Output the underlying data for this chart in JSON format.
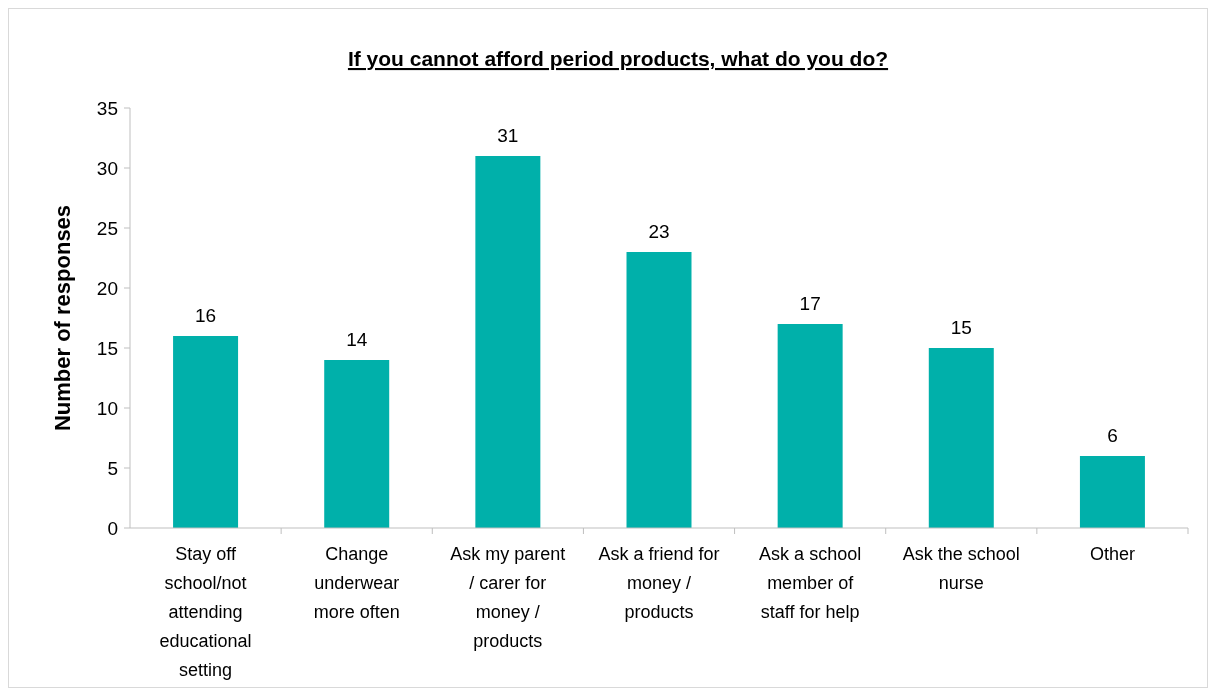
{
  "chart_data": {
    "type": "bar",
    "title": "If you cannot afford period products, what do you do?",
    "ylabel": "Number of responses",
    "categories": [
      "Stay off school/not attending educational setting",
      "Change underwear more often",
      "Ask my parent / carer for money / products",
      "Ask a friend for money / products",
      "Ask a school member of staff for help",
      "Ask the school nurse",
      "Other"
    ],
    "values": [
      16,
      14,
      31,
      23,
      17,
      15,
      6
    ],
    "color": "#00b0aa",
    "ylim": [
      0,
      35
    ],
    "yticks": [
      0,
      5,
      10,
      15,
      20,
      25,
      30,
      35
    ],
    "data_labels": true,
    "grid": false
  }
}
